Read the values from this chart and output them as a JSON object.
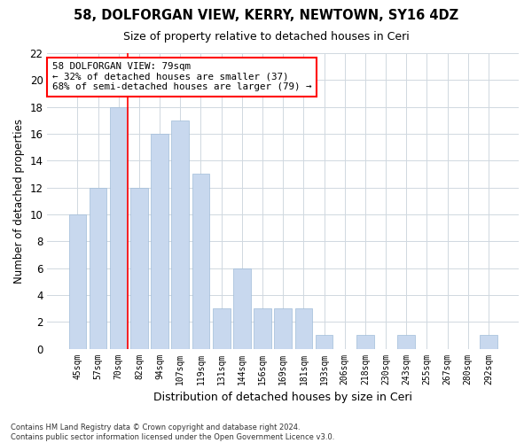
{
  "title1": "58, DOLFORGAN VIEW, KERRY, NEWTOWN, SY16 4DZ",
  "title2": "Size of property relative to detached houses in Ceri",
  "xlabel": "Distribution of detached houses by size in Ceri",
  "ylabel": "Number of detached properties",
  "categories": [
    "45sqm",
    "57sqm",
    "70sqm",
    "82sqm",
    "94sqm",
    "107sqm",
    "119sqm",
    "131sqm",
    "144sqm",
    "156sqm",
    "169sqm",
    "181sqm",
    "193sqm",
    "206sqm",
    "218sqm",
    "230sqm",
    "243sqm",
    "255sqm",
    "267sqm",
    "280sqm",
    "292sqm"
  ],
  "values": [
    10,
    12,
    18,
    12,
    16,
    17,
    13,
    3,
    6,
    3,
    3,
    3,
    1,
    0,
    1,
    0,
    1,
    0,
    0,
    0,
    1
  ],
  "bar_color": "#c8d8ee",
  "bar_edgecolor": "#a0bcd8",
  "grid_color": "#d0d8e0",
  "red_line_index": 2,
  "annotation_line1": "58 DOLFORGAN VIEW: 79sqm",
  "annotation_line2": "← 32% of detached houses are smaller (37)",
  "annotation_line3": "68% of semi-detached houses are larger (79) →",
  "annotation_box_color": "white",
  "annotation_box_edgecolor": "red",
  "footnote": "Contains HM Land Registry data © Crown copyright and database right 2024.\nContains public sector information licensed under the Open Government Licence v3.0.",
  "ylim": [
    0,
    22
  ],
  "yticks": [
    0,
    2,
    4,
    6,
    8,
    10,
    12,
    14,
    16,
    18,
    20,
    22
  ],
  "bg_color": "#ffffff"
}
